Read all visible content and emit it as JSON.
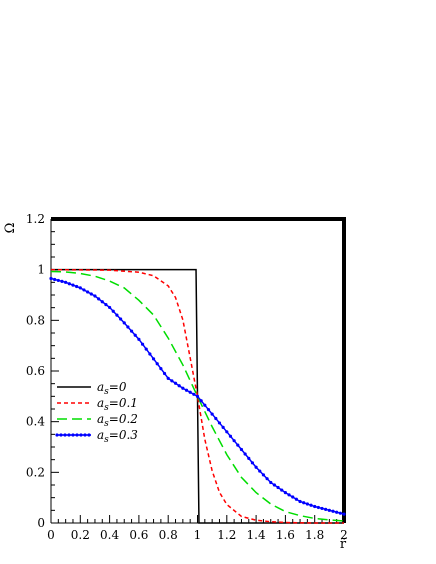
{
  "chart_data": {
    "type": "line",
    "xlabel": "r̃",
    "ylabel": "Ω",
    "xlim": [
      0,
      2
    ],
    "ylim": [
      0,
      1.2
    ],
    "x_ticks": [
      "0",
      "0.2",
      "0.4",
      "0.6",
      "0.8",
      "1",
      "1.2",
      "1.4",
      "1.6",
      "1.8",
      "2"
    ],
    "y_ticks": [
      "0",
      "0.2",
      "0.4",
      "0.6",
      "0.8",
      "1",
      "1.2"
    ],
    "grid": false,
    "legend_position": "left-middle",
    "series": [
      {
        "name": "a_s=0",
        "legend_main": "a",
        "legend_sub": "s",
        "legend_rest": "=0",
        "color": "#000000",
        "style": "solid",
        "x": [
          0,
          0.99,
          1.0,
          1.01,
          2.0
        ],
        "y": [
          1,
          1,
          0.5,
          0,
          0
        ]
      },
      {
        "name": "a_s=0.1",
        "legend_main": "a",
        "legend_sub": "s",
        "legend_rest": "=0.1",
        "color": "#ff0000",
        "style": "short-dash",
        "x": [
          0,
          0.4,
          0.6,
          0.7,
          0.8,
          0.85,
          0.9,
          0.95,
          1.0,
          1.05,
          1.1,
          1.15,
          1.2,
          1.3,
          1.4,
          1.5,
          1.6,
          1.8,
          2.0
        ],
        "y": [
          1.0,
          0.998,
          0.99,
          0.976,
          0.936,
          0.89,
          0.802,
          0.652,
          0.5,
          0.33,
          0.206,
          0.121,
          0.073,
          0.026,
          0.011,
          0.005,
          0.002,
          0.0,
          0.0
        ]
      },
      {
        "name": "a_s=0.2",
        "legend_main": "a",
        "legend_sub": "s",
        "legend_rest": "=0.2",
        "color": "#00dd00",
        "style": "long-dash",
        "x": [
          0,
          0.1,
          0.2,
          0.3,
          0.4,
          0.5,
          0.6,
          0.7,
          0.8,
          0.9,
          1.0,
          1.1,
          1.2,
          1.3,
          1.4,
          1.5,
          1.6,
          1.7,
          1.8,
          1.9,
          2.0
        ],
        "y": [
          0.993,
          0.991,
          0.985,
          0.974,
          0.955,
          0.928,
          0.879,
          0.821,
          0.73,
          0.624,
          0.5,
          0.38,
          0.27,
          0.18,
          0.12,
          0.075,
          0.045,
          0.029,
          0.018,
          0.012,
          0.008
        ]
      },
      {
        "name": "a_s=0.3",
        "legend_main": "a",
        "legend_sub": "s",
        "legend_rest": "=0.3",
        "color": "#0000ff",
        "style": "solid-markers",
        "x": [
          0,
          0.1,
          0.2,
          0.3,
          0.4,
          0.5,
          0.6,
          0.7,
          0.8,
          0.9,
          1.0,
          1.1,
          1.2,
          1.3,
          1.4,
          1.5,
          1.6,
          1.7,
          1.8,
          1.9,
          2.0
        ],
        "y": [
          0.965,
          0.95,
          0.928,
          0.896,
          0.851,
          0.79,
          0.725,
          0.648,
          0.571,
          0.532,
          0.5,
          0.43,
          0.36,
          0.29,
          0.22,
          0.16,
          0.12,
          0.085,
          0.065,
          0.05,
          0.035
        ]
      }
    ]
  }
}
